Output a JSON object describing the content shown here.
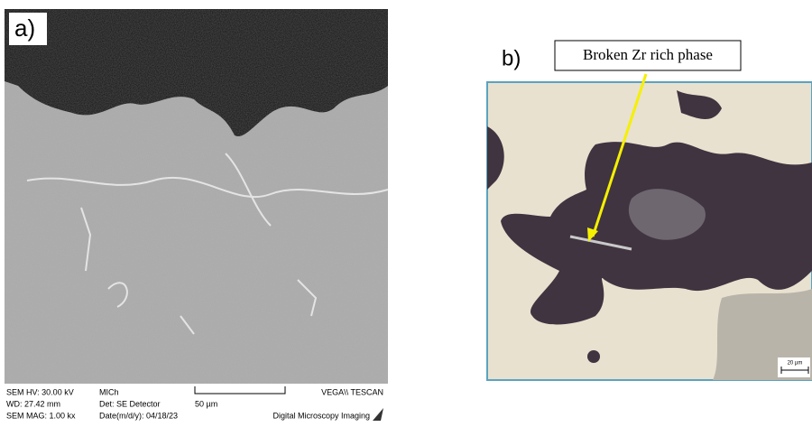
{
  "panel_a": {
    "label": "a)",
    "sem_hv": "SEM HV: 30.00 kV",
    "wd": "WD: 27.42 mm",
    "sem_mag": "SEM MAG: 1.00 kx",
    "operator": "MICh",
    "detector": "Det: SE Detector",
    "date": "Date(m/d/y): 04/18/23",
    "scale_bar": "50 µm",
    "vendor": "VEGA\\\\ TESCAN",
    "software": "Digital Microscopy Imaging"
  },
  "panel_b": {
    "label": "b)",
    "annotation": "Broken Zr rich phase",
    "scale_bar": "20 µm"
  }
}
